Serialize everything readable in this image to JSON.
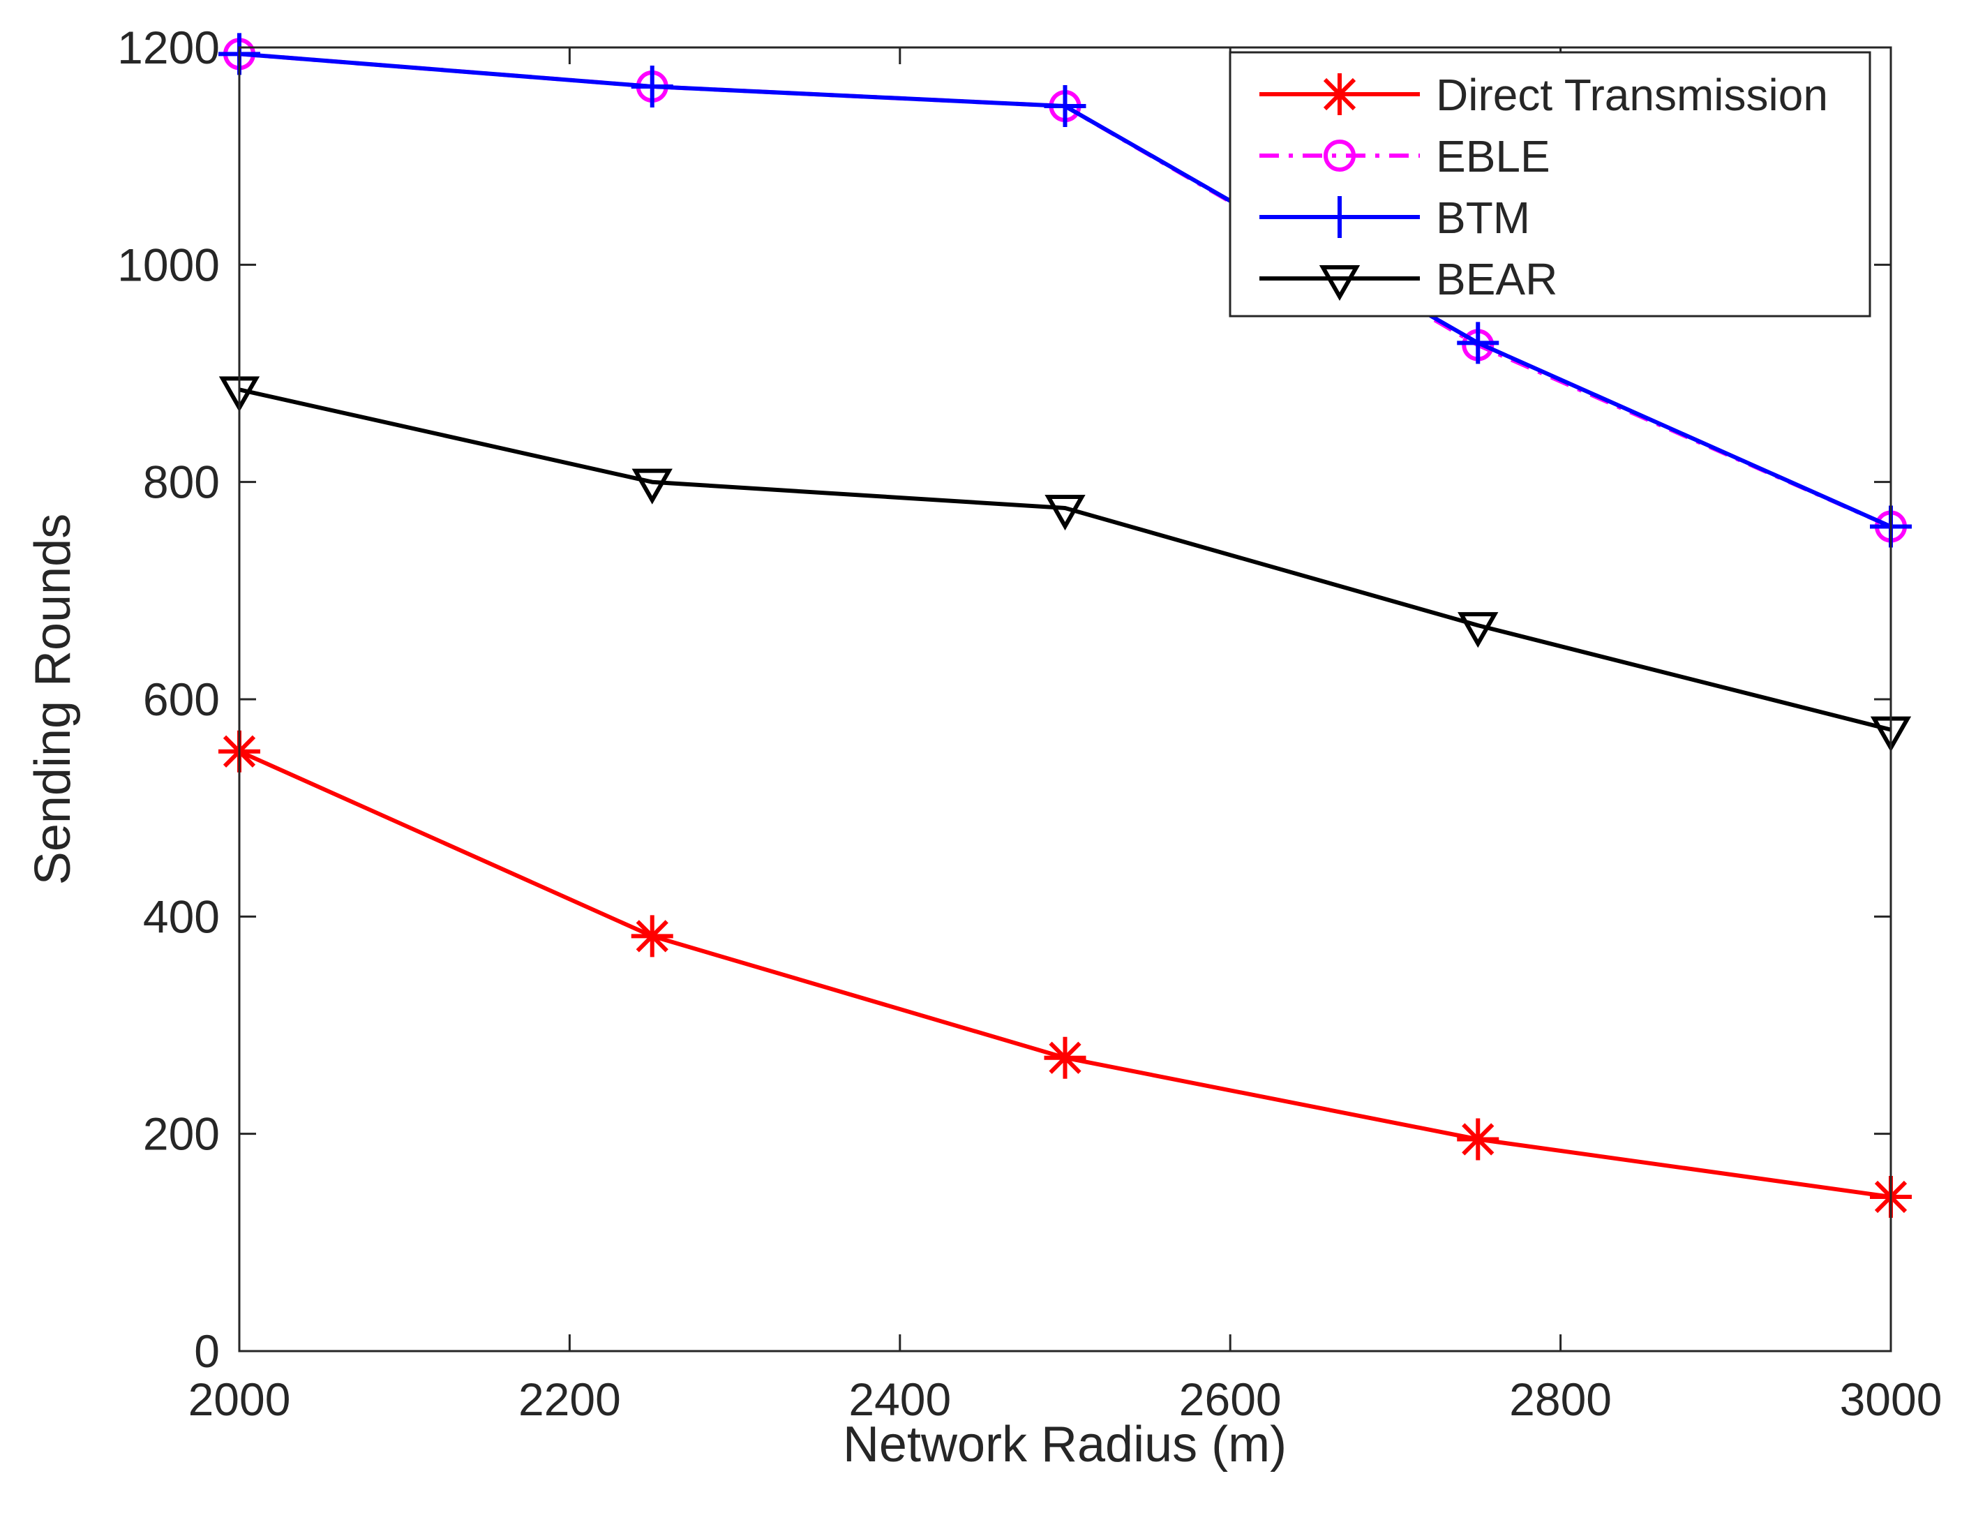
{
  "chart_data": {
    "type": "line",
    "title": "",
    "xlabel": "Network Radius (m)",
    "ylabel": "Sending Rounds",
    "xlim": [
      2000,
      3000
    ],
    "ylim": [
      0,
      1200
    ],
    "xticks": [
      2000,
      2200,
      2400,
      2600,
      2800,
      3000
    ],
    "yticks": [
      0,
      200,
      400,
      600,
      800,
      1000,
      1200
    ],
    "grid": false,
    "legend_position": "top-right",
    "x": [
      2000,
      2250,
      2500,
      2750,
      3000
    ],
    "series": [
      {
        "name": "Direct Transmission",
        "values": [
          552,
          382,
          270,
          195,
          142
        ],
        "color": "#ff0000",
        "marker": "asterisk",
        "dash": "solid"
      },
      {
        "name": "EBLE",
        "values": [
          1194,
          1164,
          1146,
          926,
          759
        ],
        "color": "#ff00ff",
        "marker": "circle",
        "dash": "dashdot"
      },
      {
        "name": "BTM",
        "values": [
          1194,
          1164,
          1146,
          928,
          759
        ],
        "color": "#0000ff",
        "marker": "plus",
        "dash": "solid"
      },
      {
        "name": "BEAR",
        "values": [
          885,
          800,
          776,
          668,
          572
        ],
        "color": "#000000",
        "marker": "triangle-down",
        "dash": "solid"
      }
    ]
  }
}
